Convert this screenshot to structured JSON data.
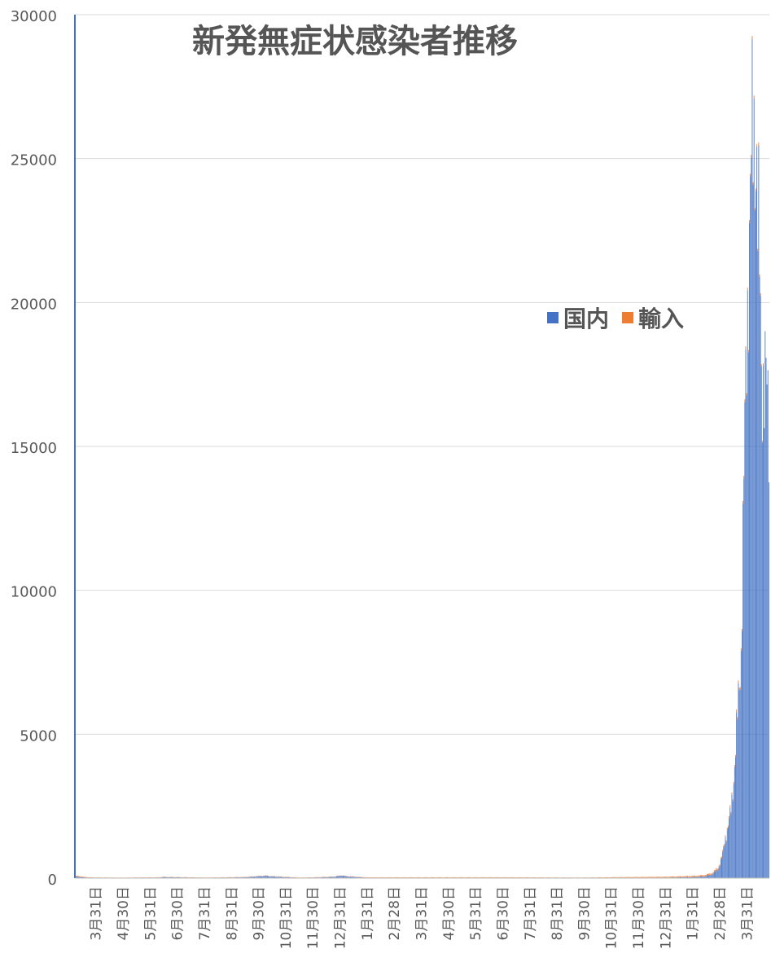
{
  "chart_data": {
    "type": "bar",
    "stacked": true,
    "title": "新発無症状感染者推移",
    "xlabel": "",
    "ylabel": "",
    "ylim": [
      0,
      30000
    ],
    "yticks": [
      0,
      5000,
      10000,
      15000,
      20000,
      25000,
      30000
    ],
    "grid": true,
    "legend_position": "right-middle",
    "x_tick_labels": [
      "3月31日",
      "4月30日",
      "5月31日",
      "6月30日",
      "7月31日",
      "8月31日",
      "9月30日",
      "10月31日",
      "11月30日",
      "12月31日",
      "1月31日",
      "2月28日",
      "3月31日",
      "4月30日",
      "5月31日",
      "6月30日",
      "7月31日",
      "8月31日",
      "9月30日",
      "10月31日",
      "11月30日",
      "12月31日",
      "1月31日",
      "2月28日",
      "3月31日"
    ],
    "x_range": [
      "2020-03-31",
      "2022-04-21"
    ],
    "series": [
      {
        "name": "国内",
        "color": "#4472C4",
        "points": [
          [
            "2020-03-31",
            60
          ],
          [
            "2020-04-05",
            40
          ],
          [
            "2020-04-10",
            25
          ],
          [
            "2020-04-20",
            10
          ],
          [
            "2020-05-20",
            5
          ],
          [
            "2020-06-30",
            20
          ],
          [
            "2020-07-04",
            35
          ],
          [
            "2020-08-20",
            10
          ],
          [
            "2020-09-30",
            30
          ],
          [
            "2020-10-24",
            80
          ],
          [
            "2020-10-28",
            60
          ],
          [
            "2020-11-30",
            10
          ],
          [
            "2020-12-20",
            25
          ],
          [
            "2021-01-05",
            45
          ],
          [
            "2021-01-10",
            70
          ],
          [
            "2021-01-14",
            90
          ],
          [
            "2021-01-18",
            60
          ],
          [
            "2021-02-10",
            15
          ],
          [
            "2021-06-30",
            10
          ],
          [
            "2021-09-30",
            5
          ],
          [
            "2021-12-31",
            20
          ],
          [
            "2022-01-31",
            40
          ],
          [
            "2022-02-10",
            60
          ],
          [
            "2022-02-18",
            120
          ],
          [
            "2022-02-25",
            300
          ],
          [
            "2022-03-02",
            800
          ],
          [
            "2022-03-05",
            1400
          ],
          [
            "2022-03-08",
            1800
          ],
          [
            "2022-03-11",
            2300
          ],
          [
            "2022-03-14",
            3500
          ],
          [
            "2022-03-16",
            4400
          ],
          [
            "2022-03-18",
            5500
          ],
          [
            "2022-03-20",
            6800
          ],
          [
            "2022-03-22",
            8000
          ],
          [
            "2022-03-24",
            11700
          ],
          [
            "2022-03-26",
            15200
          ],
          [
            "2022-03-28",
            18900
          ],
          [
            "2022-03-30",
            21700
          ],
          [
            "2022-04-01",
            23300
          ],
          [
            "2022-04-03",
            25100
          ],
          [
            "2022-04-05",
            26400
          ],
          [
            "2022-04-07",
            26300
          ],
          [
            "2022-04-09",
            22600
          ],
          [
            "2022-04-11",
            20700
          ],
          [
            "2022-04-13",
            18300
          ],
          [
            "2022-04-15",
            17500
          ],
          [
            "2022-04-18",
            16800
          ],
          [
            "2022-04-21",
            16200
          ]
        ]
      },
      {
        "name": "輸入",
        "color": "#ED7D31",
        "points": [
          [
            "2020-03-31",
            20
          ],
          [
            "2020-04-05",
            30
          ],
          [
            "2020-04-10",
            15
          ],
          [
            "2020-06-30",
            10
          ],
          [
            "2020-09-30",
            10
          ],
          [
            "2020-12-31",
            10
          ],
          [
            "2021-03-31",
            15
          ],
          [
            "2021-06-30",
            20
          ],
          [
            "2021-09-30",
            15
          ],
          [
            "2021-12-31",
            30
          ],
          [
            "2022-01-31",
            40
          ],
          [
            "2022-02-28",
            60
          ],
          [
            "2022-03-15",
            80
          ],
          [
            "2022-03-31",
            100
          ],
          [
            "2022-04-15",
            80
          ]
        ]
      }
    ]
  }
}
